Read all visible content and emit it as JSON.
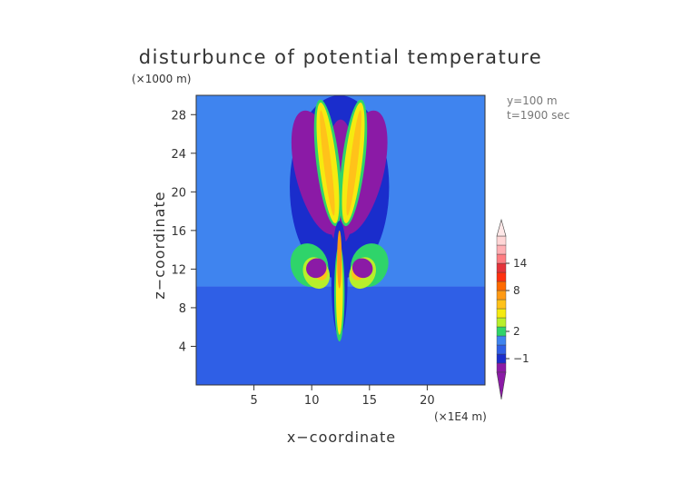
{
  "chart_data": {
    "type": "heatmap",
    "title": "disturbunce of potential temperature",
    "xlabel": "x−coordinate",
    "ylabel": "z−coordinate",
    "x_unit": "(×1E4 m)",
    "y_unit": "(×1000 m)",
    "xlim": [
      0,
      25
    ],
    "ylim": [
      0,
      30
    ],
    "x_ticks": [
      5,
      10,
      15,
      20
    ],
    "y_ticks": [
      4,
      8,
      12,
      16,
      20,
      24,
      28
    ],
    "annotations": [
      "y=100 m",
      "t=1900 sec"
    ],
    "colorbar": {
      "tick_labels": [
        "−1",
        "2",
        "8",
        "14"
      ],
      "colors": [
        "#8b1aa6",
        "#1a2dcc",
        "#2f5fe6",
        "#3f84ef",
        "#2fd46a",
        "#b8ef2a",
        "#f5ea10",
        "#ffc21a",
        "#ff9a14",
        "#ff6a00",
        "#ff3010",
        "#e4333a",
        "#ff7d82",
        "#ffb0b4",
        "#ffd6d6"
      ],
      "tick_index": [
        [
          1.5,
          "−1"
        ],
        [
          4.5,
          "2"
        ],
        [
          9.0,
          "8"
        ],
        [
          12.0,
          "14"
        ]
      ]
    }
  }
}
